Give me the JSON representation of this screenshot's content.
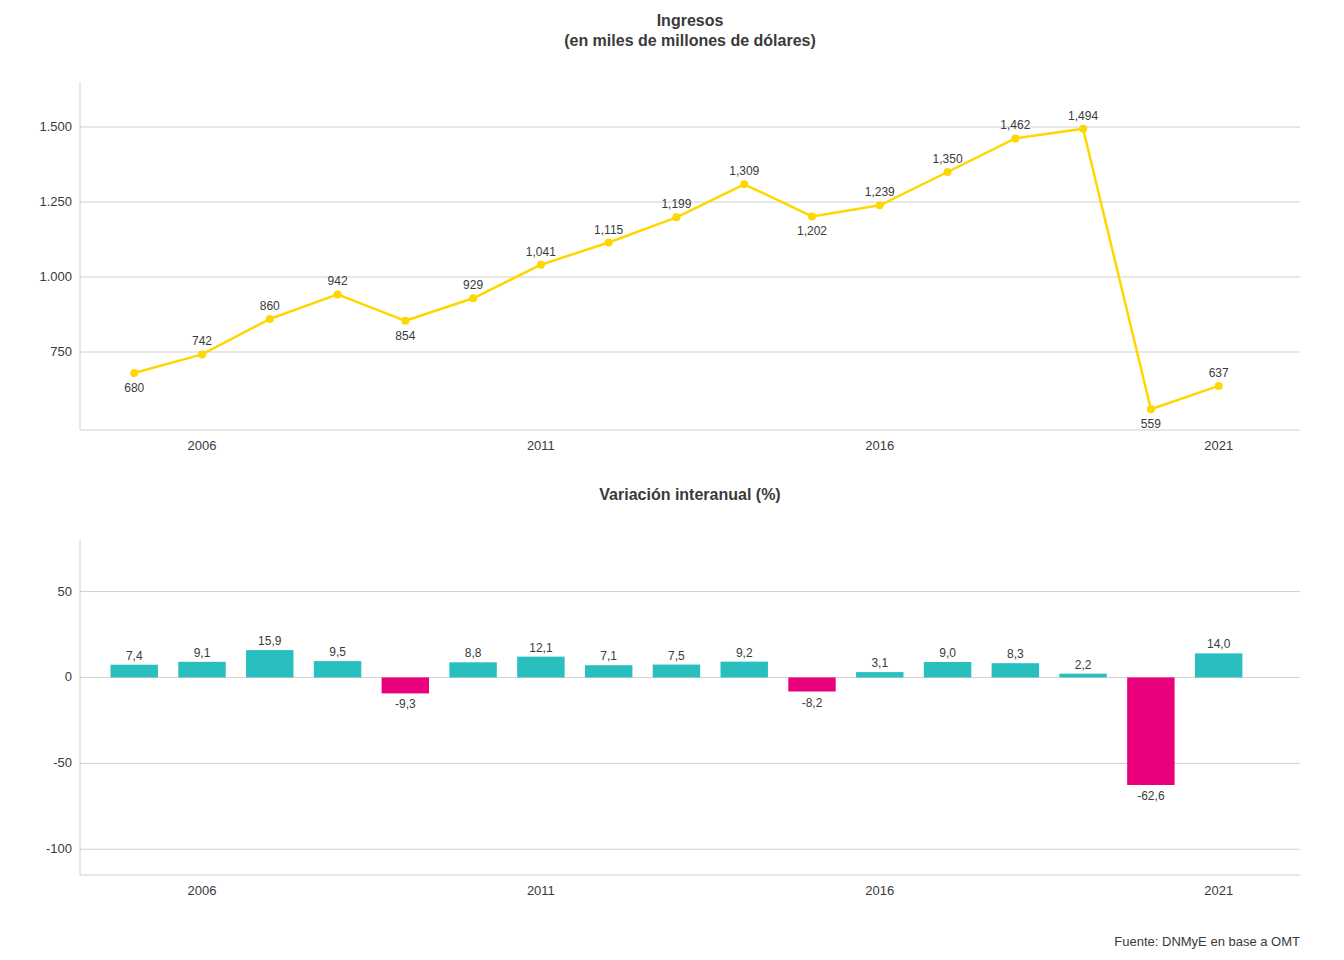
{
  "chart_data": [
    {
      "type": "line",
      "title": "Ingresos\n(en miles de millones de dólares)",
      "x": [
        2005,
        2006,
        2007,
        2008,
        2009,
        2010,
        2011,
        2012,
        2013,
        2014,
        2015,
        2016,
        2017,
        2018,
        2019,
        2020,
        2021
      ],
      "values": [
        680,
        742,
        860,
        942,
        854,
        929,
        1041,
        1115,
        1199,
        1309,
        1202,
        1239,
        1350,
        1462,
        1494,
        559,
        637
      ],
      "value_labels": [
        "680",
        "742",
        "860",
        "942",
        "854",
        "929",
        "1,041",
        "1,115",
        "1,199",
        "1,309",
        "1,202",
        "1,239",
        "1,350",
        "1,462",
        "1,494",
        "559",
        "637"
      ],
      "color": "#FFD700",
      "marker": "circle",
      "data_labels": true,
      "xlim": [
        2004.2,
        2022.2
      ],
      "xticks": [
        2006,
        2011,
        2016,
        2021
      ],
      "ylim": [
        490,
        1650
      ],
      "yticks": [
        750,
        {
          "value": 1000,
          "label": "1.000"
        },
        {
          "value": 1250,
          "label": "1.250"
        },
        {
          "value": 1500,
          "label": "1.500"
        }
      ],
      "grid": true
    },
    {
      "type": "bar",
      "title": "Variación interanual (%)",
      "x": [
        2005,
        2006,
        2007,
        2008,
        2009,
        2010,
        2011,
        2012,
        2013,
        2014,
        2015,
        2016,
        2017,
        2018,
        2019,
        2020,
        2021
      ],
      "values": [
        7.4,
        9.1,
        15.9,
        9.5,
        -9.3,
        8.8,
        12.1,
        7.1,
        7.5,
        9.2,
        -8.2,
        3.1,
        9.0,
        8.3,
        2.2,
        -62.6,
        14.0
      ],
      "value_labels": [
        "7,4",
        "9,1",
        "15,9",
        "9,5",
        "-9,3",
        "8,8",
        "12,1",
        "7,1",
        "7,5",
        "9,2",
        "-8,2",
        "3,1",
        "9,0",
        "8,3",
        "2,2",
        "-62,6",
        "14,0"
      ],
      "colors": [
        "#2ABFBF",
        "#2ABFBF",
        "#2ABFBF",
        "#2ABFBF",
        "#E8007D",
        "#2ABFBF",
        "#2ABFBF",
        "#2ABFBF",
        "#2ABFBF",
        "#2ABFBF",
        "#E8007D",
        "#2ABFBF",
        "#2ABFBF",
        "#2ABFBF",
        "#2ABFBF",
        "#E8007D",
        "#2ABFBF"
      ],
      "data_labels": true,
      "xlim": [
        2004.2,
        2022.2
      ],
      "xticks": [
        2006,
        2011,
        2016,
        2021
      ],
      "ylim": [
        -115,
        80
      ],
      "yticks": [
        -100,
        -50,
        0,
        50
      ],
      "grid": true,
      "annotation": "Fuente: DNMyE en base a OMT"
    }
  ]
}
